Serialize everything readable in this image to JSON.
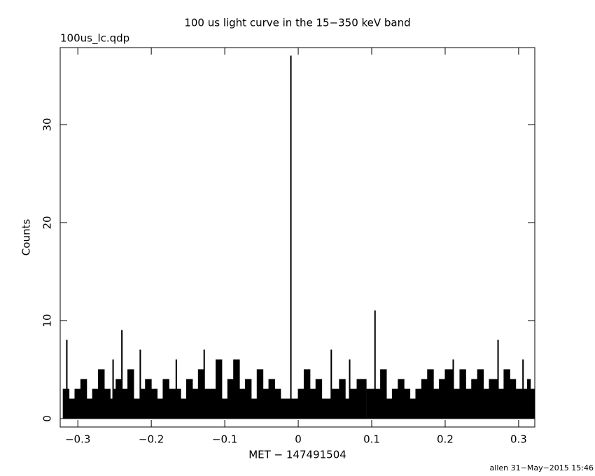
{
  "chart_data": {
    "type": "line",
    "title": "100 us light curve in the 15−350 keV band",
    "subtitle": "100us_lc.qdp",
    "x_label": "MET − 147491504",
    "y_label": "Counts",
    "footer": "allen 31−May−2015 15:46",
    "color": "#000000",
    "xlim": [
      -0.324,
      0.322
    ],
    "ylim": [
      -0.86,
      37.86
    ],
    "xticks": [
      {
        "value": -0.3,
        "label": "−0.3"
      },
      {
        "value": -0.2,
        "label": "−0.2"
      },
      {
        "value": -0.1,
        "label": "−0.1"
      },
      0,
      0.1,
      0.2,
      0.3
    ],
    "yticks": [
      0,
      10,
      20,
      30
    ],
    "x": [
      -0.32,
      -0.3155,
      -0.3145,
      -0.312,
      -0.304,
      -0.296,
      -0.288,
      -0.28,
      -0.272,
      -0.264,
      -0.256,
      -0.2525,
      -0.2515,
      -0.248,
      -0.2405,
      -0.2395,
      -0.232,
      -0.224,
      -0.2155,
      -0.2145,
      -0.208,
      -0.2,
      -0.192,
      -0.184,
      -0.176,
      -0.1665,
      -0.1655,
      -0.16,
      -0.152,
      -0.144,
      -0.136,
      -0.1285,
      -0.1275,
      -0.12,
      -0.112,
      -0.104,
      -0.096,
      -0.088,
      -0.08,
      -0.072,
      -0.064,
      -0.056,
      -0.048,
      -0.04,
      -0.032,
      -0.024,
      -0.0105,
      -0.0095,
      0.0,
      0.008,
      0.016,
      0.024,
      0.032,
      0.0445,
      0.0455,
      0.056,
      0.064,
      0.0695,
      0.0705,
      0.08,
      0.0925,
      0.0935,
      0.104,
      0.105,
      0.112,
      0.12,
      0.128,
      0.136,
      0.144,
      0.152,
      0.16,
      0.168,
      0.176,
      0.184,
      0.192,
      0.2,
      0.2105,
      0.2115,
      0.22,
      0.228,
      0.236,
      0.244,
      0.252,
      0.26,
      0.2715,
      0.2725,
      0.28,
      0.288,
      0.296,
      0.3055,
      0.3065,
      0.312,
      0.316
    ],
    "values": [
      3,
      8,
      3,
      2,
      3,
      4,
      2,
      3,
      5,
      3,
      2,
      6,
      3,
      4,
      9,
      3,
      5,
      2,
      7,
      3,
      4,
      3,
      2,
      4,
      3,
      6,
      3,
      2,
      4,
      3,
      5,
      7,
      3,
      3,
      6,
      2,
      4,
      6,
      3,
      4,
      2,
      5,
      3,
      4,
      3,
      2,
      37,
      2,
      3,
      5,
      3,
      4,
      2,
      7,
      3,
      4,
      2,
      6,
      3,
      4,
      0,
      3,
      11,
      3,
      5,
      2,
      3,
      4,
      3,
      2,
      3,
      4,
      5,
      3,
      4,
      5,
      6,
      3,
      5,
      3,
      4,
      5,
      3,
      4,
      8,
      3,
      5,
      4,
      3,
      6,
      3,
      4,
      3
    ]
  }
}
